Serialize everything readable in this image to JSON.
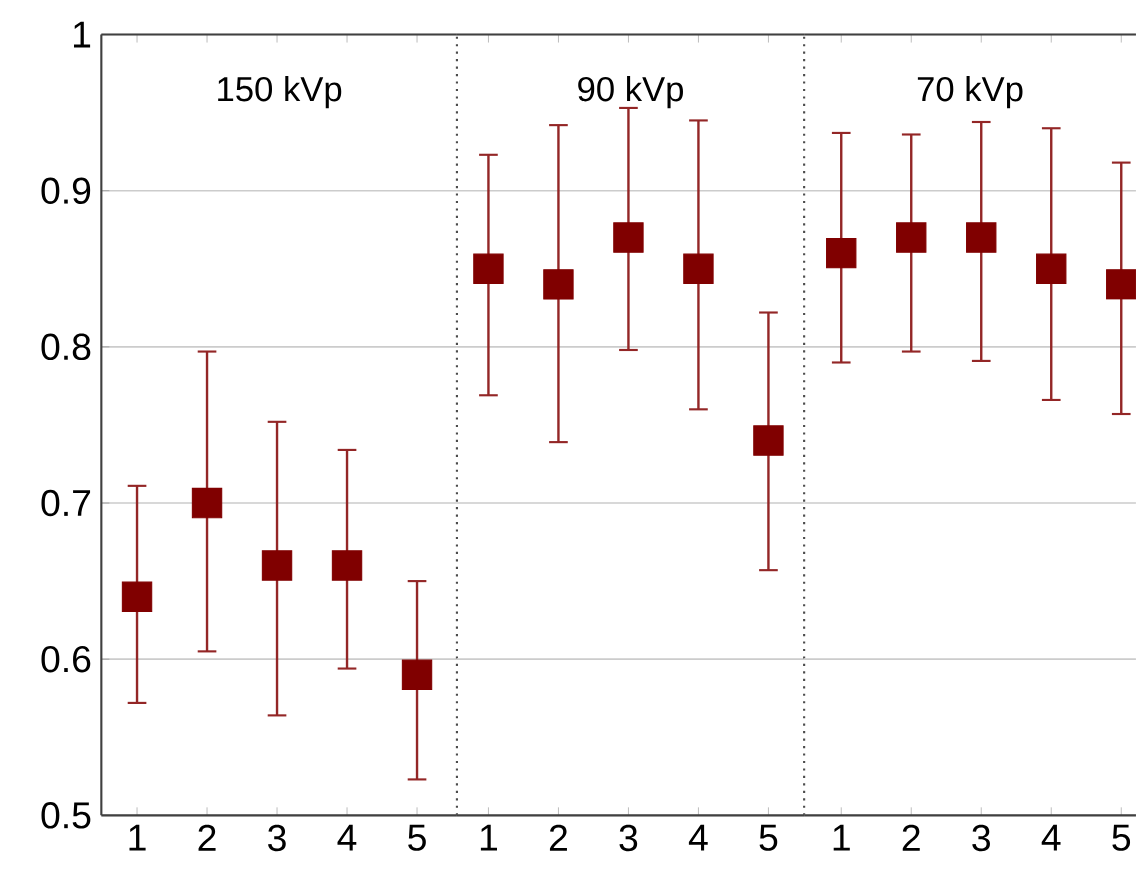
{
  "chart_data": [
    {
      "type": "scatter",
      "title": "150 kVp",
      "categories": [
        "1",
        "2",
        "3",
        "4",
        "5"
      ],
      "values": [
        0.64,
        0.7,
        0.66,
        0.66,
        0.59
      ],
      "errors": [
        [
          0.572,
          0.711
        ],
        [
          0.605,
          0.797
        ],
        [
          0.564,
          0.752
        ],
        [
          0.594,
          0.734
        ],
        [
          0.523,
          0.65
        ]
      ],
      "color": "#800000",
      "marker": "square",
      "ylim": [
        0.5,
        1
      ],
      "yticks": [
        0.5,
        0.6,
        0.7,
        0.8,
        0.9,
        1
      ],
      "grid": "y"
    },
    {
      "type": "scatter",
      "title": "90 kVp",
      "categories": [
        "1",
        "2",
        "3",
        "4",
        "5"
      ],
      "values": [
        0.85,
        0.84,
        0.87,
        0.85,
        0.74
      ],
      "errors": [
        [
          0.769,
          0.923
        ],
        [
          0.739,
          0.942
        ],
        [
          0.798,
          0.953
        ],
        [
          0.76,
          0.945
        ],
        [
          0.657,
          0.822
        ]
      ],
      "color": "#800000",
      "marker": "square",
      "ylim": [
        0.5,
        1
      ],
      "yticks": [
        0.5,
        0.6,
        0.7,
        0.8,
        0.9,
        1
      ],
      "grid": "y",
      "tick_labels": "x"
    },
    {
      "type": "scatter",
      "title": "70 kVp",
      "categories": [
        "1",
        "2",
        "3",
        "4",
        "5"
      ],
      "values": [
        0.86,
        0.87,
        0.87,
        0.85,
        0.84
      ],
      "errors": [
        [
          0.79,
          0.937
        ],
        [
          0.797,
          0.936
        ],
        [
          0.791,
          0.944
        ],
        [
          0.766,
          0.94
        ],
        [
          0.757,
          0.918
        ]
      ],
      "color": "#800000",
      "marker": "square",
      "ylim": [
        0.5,
        1
      ],
      "yticks": [
        0.5,
        0.6,
        0.7,
        0.8,
        0.9,
        1
      ],
      "grid": "y",
      "tick_labels": "x"
    }
  ]
}
